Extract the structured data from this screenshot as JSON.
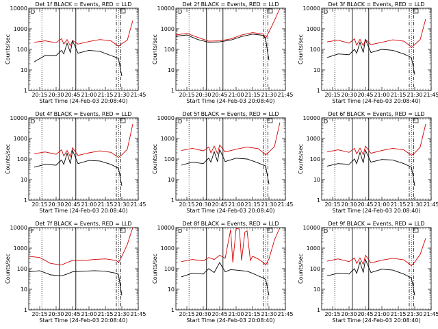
{
  "chart_data": [
    {
      "type": "line",
      "title": "Det 1f BLACK = Events, RED = LLD",
      "xlabel": "Start Time (24-Feb-03 20:08:40)",
      "ylabel": "Counts/sec",
      "yscale": "log",
      "ylim": [
        1,
        10000
      ],
      "x_ticks": [
        "20:15",
        "20:30",
        "20:45",
        "21:00",
        "21:15",
        "21:30",
        "21:45"
      ],
      "y_ticks": [
        "1",
        "10",
        "100",
        "1000",
        "10000"
      ],
      "marker": "D",
      "time_axis_minutes": [
        0,
        100
      ],
      "vlines": {
        "dotted": [
          12,
          82
        ],
        "solid": [
          28,
          43
        ],
        "dashdot": [
          80,
          84
        ]
      },
      "series": [
        {
          "name": "LLD",
          "color": "#d40000",
          "minutes": [
            5,
            15,
            25,
            30,
            32,
            35,
            38,
            40,
            45,
            55,
            65,
            75,
            80,
            82,
            85,
            90,
            95
          ],
          "values": [
            220,
            260,
            210,
            330,
            180,
            300,
            150,
            270,
            180,
            240,
            300,
            260,
            170,
            140,
            190,
            280,
            2500
          ]
        },
        {
          "name": "Events",
          "color": "#000000",
          "minutes": [
            5,
            15,
            25,
            30,
            32,
            35,
            38,
            40,
            45,
            55,
            65,
            75,
            80,
            82,
            85
          ],
          "values": [
            25,
            50,
            50,
            90,
            60,
            200,
            70,
            260,
            65,
            90,
            80,
            50,
            40,
            35,
            5
          ]
        }
      ]
    },
    {
      "type": "line",
      "title": "Det 2f BLACK = Events, RED = LLD",
      "xlabel": "Start Time (24-Feb-03 20:08:40)",
      "ylabel": "Counts/sec",
      "yscale": "log",
      "ylim": [
        1,
        10000
      ],
      "x_ticks": [
        "20:15",
        "20:30",
        "20:45",
        "21:00",
        "21:15",
        "21:30",
        "21:45"
      ],
      "y_ticks": [
        "1",
        "10",
        "100",
        "1000",
        "10000"
      ],
      "marker": "D",
      "time_axis_minutes": [
        0,
        100
      ],
      "vlines": {
        "dotted": [
          12,
          82
        ],
        "solid": [
          28,
          43
        ],
        "dashdot": [
          80,
          84
        ]
      },
      "series": [
        {
          "name": "LLD",
          "color": "#d40000",
          "minutes": [
            0,
            10,
            20,
            30,
            40,
            50,
            60,
            70,
            80,
            82,
            85,
            90,
            95
          ],
          "values": [
            500,
            600,
            380,
            250,
            260,
            320,
            500,
            650,
            550,
            350,
            700,
            2500,
            10000
          ]
        },
        {
          "name": "Events",
          "color": "#000000",
          "minutes": [
            0,
            10,
            20,
            30,
            40,
            50,
            60,
            70,
            80,
            82,
            85
          ],
          "values": [
            430,
            500,
            300,
            220,
            230,
            280,
            420,
            550,
            480,
            300,
            30
          ]
        }
      ]
    },
    {
      "type": "line",
      "title": "Det 3f BLACK = Events, RED = LLD",
      "xlabel": "Start Time (24-Feb-03 20:08:40)",
      "ylabel": "Counts/sec",
      "yscale": "log",
      "ylim": [
        1,
        10000
      ],
      "x_ticks": [
        "20:15",
        "20:30",
        "20:45",
        "21:00",
        "21:15",
        "21:30",
        "21:45"
      ],
      "y_ticks": [
        "1",
        "10",
        "100",
        "1000",
        "10000"
      ],
      "marker": "D",
      "time_axis_minutes": [
        0,
        100
      ],
      "vlines": {
        "dotted": [
          12,
          82
        ],
        "solid": [
          28,
          43
        ],
        "dashdot": [
          80,
          84
        ]
      },
      "series": [
        {
          "name": "LLD",
          "color": "#d40000",
          "minutes": [
            5,
            15,
            25,
            30,
            32,
            35,
            38,
            40,
            45,
            55,
            65,
            75,
            80,
            82,
            85,
            90,
            95
          ],
          "values": [
            230,
            280,
            200,
            320,
            160,
            310,
            150,
            300,
            170,
            220,
            290,
            250,
            160,
            120,
            170,
            300,
            3000
          ]
        },
        {
          "name": "Events",
          "color": "#000000",
          "minutes": [
            5,
            15,
            25,
            30,
            32,
            35,
            38,
            40,
            45,
            55,
            65,
            75,
            80,
            82,
            85
          ],
          "values": [
            40,
            60,
            55,
            100,
            65,
            220,
            70,
            300,
            70,
            100,
            90,
            60,
            45,
            40,
            6
          ]
        }
      ]
    },
    {
      "type": "line",
      "title": "Det 4f BLACK = Events, RED = LLD",
      "xlabel": "Start Time (24-Feb-03 20:08:40)",
      "ylabel": "Counts/sec",
      "yscale": "log",
      "ylim": [
        1,
        10000
      ],
      "x_ticks": [
        "20:15",
        "20:30",
        "20:45",
        "21:00",
        "21:15",
        "21:30",
        "21:45"
      ],
      "y_ticks": [
        "1",
        "10",
        "100",
        "1000",
        "10000"
      ],
      "marker": "D",
      "time_axis_minutes": [
        0,
        100
      ],
      "vlines": {
        "dotted": [
          12,
          82
        ],
        "solid": [
          28,
          43
        ],
        "dashdot": [
          80,
          84
        ]
      },
      "series": [
        {
          "name": "LLD",
          "color": "#d40000",
          "minutes": [
            5,
            15,
            25,
            30,
            32,
            35,
            38,
            40,
            45,
            55,
            65,
            75,
            80,
            82,
            85,
            90,
            95
          ],
          "values": [
            180,
            220,
            170,
            280,
            140,
            260,
            130,
            350,
            150,
            200,
            250,
            210,
            140,
            120,
            160,
            300,
            5000
          ]
        },
        {
          "name": "Events",
          "color": "#000000",
          "minutes": [
            5,
            15,
            25,
            30,
            32,
            35,
            38,
            40,
            45,
            55,
            65,
            75,
            80,
            82,
            85
          ],
          "values": [
            40,
            55,
            50,
            90,
            55,
            190,
            60,
            260,
            60,
            85,
            80,
            55,
            40,
            35,
            5
          ]
        }
      ]
    },
    {
      "type": "line",
      "title": "Det 5f BLACK = Events, RED = LLD",
      "xlabel": "Start Time (24-Feb-03 20:08:40)",
      "ylabel": "Counts/sec",
      "yscale": "log",
      "ylim": [
        1,
        10000
      ],
      "x_ticks": [
        "20:15",
        "20:30",
        "20:45",
        "21:00",
        "21:15",
        "21:30",
        "21:45"
      ],
      "y_ticks": [
        "1",
        "10",
        "100",
        "1000",
        "10000"
      ],
      "marker": "D",
      "time_axis_minutes": [
        0,
        100
      ],
      "vlines": {
        "dotted": [
          12,
          82
        ],
        "solid": [
          28,
          43
        ],
        "dashdot": [
          80,
          84
        ]
      },
      "series": [
        {
          "name": "LLD",
          "color": "#d40000",
          "minutes": [
            5,
            15,
            25,
            30,
            32,
            35,
            38,
            40,
            45,
            55,
            65,
            75,
            80,
            82,
            85,
            90,
            95
          ],
          "values": [
            260,
            330,
            250,
            380,
            200,
            420,
            180,
            480,
            220,
            300,
            380,
            320,
            200,
            160,
            220,
            400,
            6000
          ]
        },
        {
          "name": "Events",
          "color": "#000000",
          "minutes": [
            5,
            15,
            25,
            30,
            32,
            35,
            38,
            40,
            45,
            55,
            65,
            75,
            80,
            82,
            85
          ],
          "values": [
            50,
            70,
            60,
            110,
            70,
            230,
            75,
            290,
            75,
            110,
            100,
            65,
            50,
            45,
            6
          ]
        }
      ]
    },
    {
      "type": "line",
      "title": "Det 6f BLACK = Events, RED = LLD",
      "xlabel": "Start Time (24-Feb-03 20:08:40)",
      "ylabel": "Counts/sec",
      "yscale": "log",
      "ylim": [
        1,
        10000
      ],
      "x_ticks": [
        "20:15",
        "20:30",
        "20:45",
        "21:00",
        "21:15",
        "21:30",
        "21:45"
      ],
      "y_ticks": [
        "1",
        "10",
        "100",
        "1000",
        "10000"
      ],
      "marker": "D",
      "time_axis_minutes": [
        0,
        100
      ],
      "vlines": {
        "dotted": [
          12,
          82
        ],
        "solid": [
          28,
          43
        ],
        "dashdot": [
          80,
          84
        ]
      },
      "series": [
        {
          "name": "LLD",
          "color": "#d40000",
          "minutes": [
            5,
            15,
            25,
            30,
            32,
            35,
            38,
            40,
            45,
            55,
            65,
            75,
            80,
            82,
            85,
            90,
            95
          ],
          "values": [
            220,
            280,
            210,
            330,
            180,
            340,
            160,
            420,
            190,
            260,
            330,
            280,
            180,
            150,
            200,
            380,
            5000
          ]
        },
        {
          "name": "Events",
          "color": "#000000",
          "minutes": [
            5,
            15,
            25,
            30,
            32,
            35,
            38,
            40,
            45,
            55,
            65,
            75,
            80,
            82,
            85
          ],
          "values": [
            45,
            60,
            55,
            100,
            60,
            210,
            65,
            270,
            70,
            95,
            90,
            60,
            45,
            40,
            5
          ]
        }
      ]
    },
    {
      "type": "line",
      "title": "Det 7f BLACK = Events, RED = LLD",
      "xlabel": "Start Time (24-Feb-03 20:08:40)",
      "ylabel": "Counts/sec",
      "yscale": "log",
      "ylim": [
        1,
        10000
      ],
      "x_ticks": [
        "20:15",
        "20:30",
        "20:45",
        "21:00",
        "21:15",
        "21:30",
        "21:45"
      ],
      "y_ticks": [
        "1",
        "10",
        "100",
        "1000",
        "10000"
      ],
      "marker": "F",
      "time_axis_minutes": [
        0,
        100
      ],
      "vlines": {
        "dotted": [
          12,
          82
        ],
        "solid": [
          28,
          43
        ],
        "dashdot": [
          80,
          84
        ]
      },
      "series": [
        {
          "name": "LLD",
          "color": "#d40000",
          "minutes": [
            0,
            10,
            20,
            30,
            35,
            40,
            50,
            60,
            70,
            80,
            82,
            85,
            90,
            95
          ],
          "values": [
            400,
            350,
            180,
            150,
            200,
            250,
            250,
            280,
            300,
            250,
            200,
            400,
            1500,
            10000
          ]
        },
        {
          "name": "Events",
          "color": "#000000",
          "minutes": [
            0,
            10,
            20,
            30,
            35,
            40,
            50,
            60,
            70,
            80,
            82,
            85
          ],
          "values": [
            70,
            80,
            50,
            45,
            55,
            70,
            75,
            80,
            75,
            60,
            50,
            5
          ]
        }
      ]
    },
    {
      "type": "line",
      "title": "Det 8f BLACK = Events, RED = LLD",
      "xlabel": "Start Time (24-Feb-03 20:08:40)",
      "ylabel": "Counts/sec",
      "yscale": "log",
      "ylim": [
        1,
        10000
      ],
      "x_ticks": [
        "20:15",
        "20:30",
        "20:45",
        "21:00",
        "21:15",
        "21:30",
        "21:45"
      ],
      "y_ticks": [
        "1",
        "10",
        "100",
        "1000",
        "10000"
      ],
      "marker": "D",
      "time_axis_minutes": [
        0,
        100
      ],
      "vlines": {
        "dotted": [
          12,
          82
        ],
        "solid": [
          28,
          43
        ],
        "dashdot": [
          80,
          84
        ]
      },
      "series": [
        {
          "name": "LLD",
          "color": "#d40000",
          "minutes": [
            5,
            15,
            25,
            30,
            35,
            40,
            45,
            50,
            52,
            55,
            58,
            60,
            63,
            65,
            68,
            70,
            75,
            80,
            82,
            85,
            90,
            95
          ],
          "values": [
            220,
            280,
            240,
            350,
            280,
            450,
            320,
            8000,
            200,
            9000,
            8500,
            250,
            6000,
            7000,
            250,
            400,
            300,
            200,
            150,
            300,
            2500,
            10000
          ]
        },
        {
          "name": "Events",
          "color": "#000000",
          "minutes": [
            5,
            15,
            25,
            30,
            35,
            40,
            45,
            50,
            55,
            60,
            65,
            70,
            75,
            80,
            82,
            85
          ],
          "values": [
            40,
            60,
            55,
            100,
            65,
            200,
            70,
            90,
            85,
            80,
            75,
            60,
            45,
            35,
            30,
            5
          ]
        }
      ]
    },
    {
      "type": "line",
      "title": "Det 9f BLACK = Events, RED = LLD",
      "xlabel": "Start Time (24-Feb-03 20:08:40)",
      "ylabel": "Counts/sec",
      "yscale": "log",
      "ylim": [
        1,
        10000
      ],
      "x_ticks": [
        "20:15",
        "20:30",
        "20:45",
        "21:00",
        "21:15",
        "21:30",
        "21:45"
      ],
      "y_ticks": [
        "1",
        "10",
        "100",
        "1000",
        "10000"
      ],
      "marker": "D",
      "time_axis_minutes": [
        0,
        100
      ],
      "vlines": {
        "dotted": [
          12,
          82
        ],
        "solid": [
          28,
          43
        ],
        "dashdot": [
          80,
          84
        ]
      },
      "series": [
        {
          "name": "LLD",
          "color": "#d40000",
          "minutes": [
            5,
            15,
            25,
            30,
            32,
            35,
            38,
            40,
            45,
            55,
            65,
            75,
            80,
            82,
            85,
            90,
            95
          ],
          "values": [
            230,
            300,
            220,
            330,
            180,
            330,
            160,
            450,
            190,
            260,
            320,
            270,
            170,
            140,
            210,
            500,
            3000
          ]
        },
        {
          "name": "Events",
          "color": "#000000",
          "minutes": [
            5,
            15,
            25,
            30,
            32,
            35,
            38,
            40,
            45,
            55,
            65,
            75,
            80,
            82,
            85
          ],
          "values": [
            45,
            60,
            55,
            100,
            60,
            210,
            65,
            280,
            65,
            95,
            85,
            55,
            40,
            35,
            5
          ]
        }
      ]
    }
  ]
}
